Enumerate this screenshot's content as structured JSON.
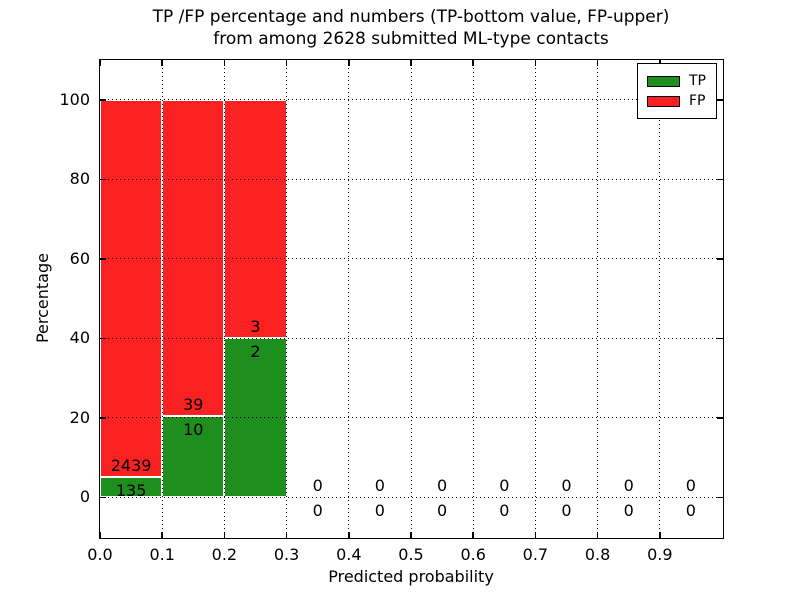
{
  "title": {
    "line1": "TP /FP percentage and numbers (TP-bottom value, FP-upper)",
    "line2": "from among 2628 submitted ML-type contacts"
  },
  "chart_data": {
    "type": "bar",
    "stacked": true,
    "title": "TP /FP percentage and numbers (TP-bottom value, FP-upper)\nfrom among 2628 submitted ML-type contacts",
    "xlabel": "Predicted probability",
    "ylabel": "Percentage",
    "total_contacts": 2628,
    "xlim": [
      0.0,
      1.0
    ],
    "ylim": [
      -10,
      110
    ],
    "xticks": [
      0.0,
      0.1,
      0.2,
      0.3,
      0.4,
      0.5,
      0.6,
      0.7,
      0.8,
      0.9
    ],
    "xtick_labels": [
      "0.0",
      "0.1",
      "0.2",
      "0.3",
      "0.4",
      "0.5",
      "0.6",
      "0.7",
      "0.8",
      "0.9"
    ],
    "yticks": [
      0,
      20,
      40,
      60,
      80,
      100
    ],
    "ytick_labels": [
      "0",
      "20",
      "40",
      "60",
      "80",
      "100"
    ],
    "grid": "dotted",
    "legend": {
      "position": "upper right",
      "entries": [
        {
          "label": "TP",
          "color": "#1e8e1e"
        },
        {
          "label": "FP",
          "color": "#f92121"
        }
      ]
    },
    "bins": [
      {
        "range": [
          0.0,
          0.1
        ],
        "tp": 135,
        "fp": 2439,
        "tp_percent": 5.2,
        "fp_percent": 94.8
      },
      {
        "range": [
          0.1,
          0.2
        ],
        "tp": 10,
        "fp": 39,
        "tp_percent": 20.4,
        "fp_percent": 79.6
      },
      {
        "range": [
          0.2,
          0.3
        ],
        "tp": 2,
        "fp": 3,
        "tp_percent": 40.0,
        "fp_percent": 60.0
      },
      {
        "range": [
          0.3,
          0.4
        ],
        "tp": 0,
        "fp": 0,
        "tp_percent": 0,
        "fp_percent": 0
      },
      {
        "range": [
          0.4,
          0.5
        ],
        "tp": 0,
        "fp": 0,
        "tp_percent": 0,
        "fp_percent": 0
      },
      {
        "range": [
          0.5,
          0.6
        ],
        "tp": 0,
        "fp": 0,
        "tp_percent": 0,
        "fp_percent": 0
      },
      {
        "range": [
          0.6,
          0.7
        ],
        "tp": 0,
        "fp": 0,
        "tp_percent": 0,
        "fp_percent": 0
      },
      {
        "range": [
          0.7,
          0.8
        ],
        "tp": 0,
        "fp": 0,
        "tp_percent": 0,
        "fp_percent": 0
      },
      {
        "range": [
          0.8,
          0.9
        ],
        "tp": 0,
        "fp": 0,
        "tp_percent": 0,
        "fp_percent": 0
      },
      {
        "range": [
          0.9,
          1.0
        ],
        "tp": 0,
        "fp": 0,
        "tp_percent": 0,
        "fp_percent": 0
      }
    ]
  },
  "colors": {
    "tp_green": "#1e8e1e",
    "fp_red": "#f92121",
    "grid": "#000000",
    "background": "#ffffff"
  }
}
